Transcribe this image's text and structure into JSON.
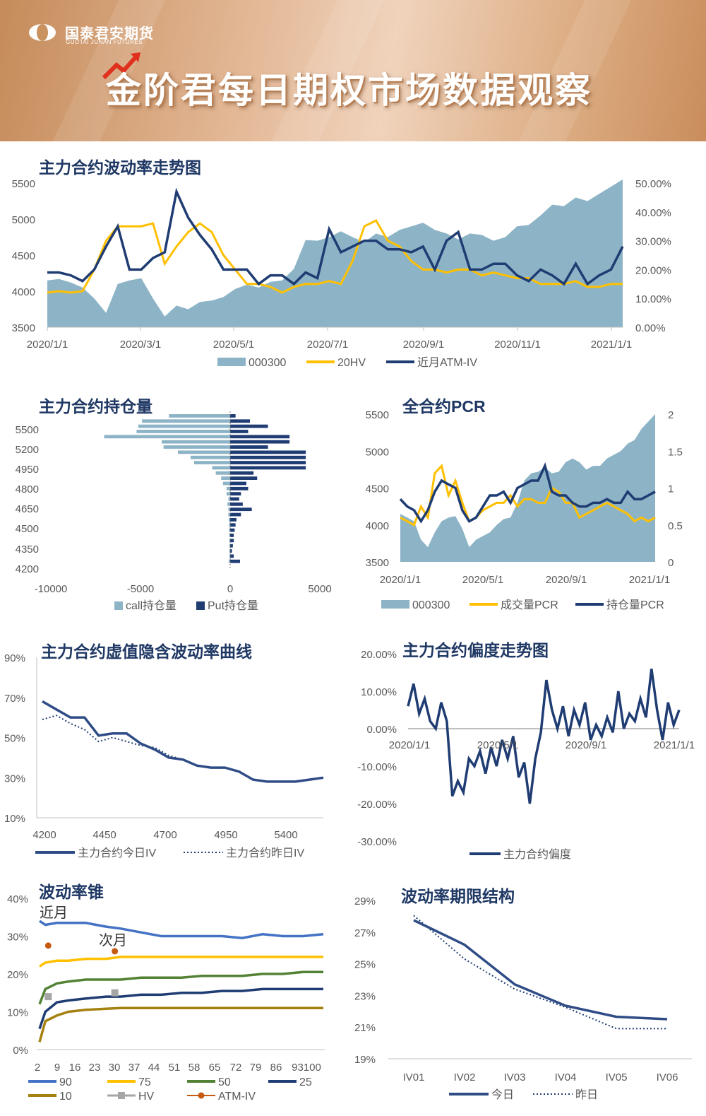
{
  "header": {
    "logo_cn": "国泰君安期货",
    "logo_en": "GUOTAI JUNAN FUTURES",
    "title": "金阶君每日期权市场数据观察"
  },
  "colors": {
    "title": "#1f3864",
    "navy": "#1f3c73",
    "gold": "#ffc000",
    "area": "#8db4c6",
    "blue": "#4472c4",
    "green": "#548235",
    "olive": "#a5810f",
    "gray": "#a6a6a6",
    "orange": "#c55a11",
    "navy2": "#2f4c87"
  },
  "chart_data": [
    {
      "id": "vol_trend",
      "type": "line",
      "title": "主力合约波动率走势图",
      "x_ticks": [
        "2020/1/1",
        "2020/3/1",
        "2020/5/1",
        "2020/7/1",
        "2020/9/1",
        "2020/11/1",
        "2021/1/1"
      ],
      "ylim": [
        3500,
        5500
      ],
      "y_ticks": [
        "5500",
        "5000",
        "4500",
        "4000",
        "3500"
      ],
      "y2lim": [
        0,
        0.5
      ],
      "y2_ticks": [
        "50.00%",
        "40.00%",
        "30.00%",
        "20.00%",
        "10.00%",
        "0.00%"
      ],
      "legend": [
        "000300",
        "20HV",
        "近月ATM-IV"
      ],
      "series": [
        {
          "name": "000300",
          "axis": "left",
          "values": [
            4150,
            4170,
            4120,
            4050,
            3900,
            3700,
            4100,
            4150,
            4180,
            3900,
            3650,
            3800,
            3750,
            3850,
            3870,
            3920,
            4030,
            4090,
            4050,
            4130,
            4150,
            4310,
            4710,
            4700,
            4750,
            4830,
            4750,
            4680,
            4800,
            4750,
            4850,
            4900,
            4950,
            4850,
            4800,
            4720,
            4800,
            4780,
            4700,
            4750,
            4900,
            4920,
            5050,
            5200,
            5180,
            5300,
            5250,
            5350,
            5450,
            5550
          ]
        },
        {
          "name": "20HV",
          "axis": "right",
          "values": [
            0.12,
            0.125,
            0.12,
            0.125,
            0.2,
            0.3,
            0.35,
            0.35,
            0.35,
            0.36,
            0.22,
            0.28,
            0.33,
            0.36,
            0.33,
            0.25,
            0.2,
            0.15,
            0.15,
            0.14,
            0.12,
            0.14,
            0.15,
            0.15,
            0.16,
            0.15,
            0.23,
            0.35,
            0.37,
            0.3,
            0.28,
            0.23,
            0.2,
            0.2,
            0.19,
            0.2,
            0.2,
            0.18,
            0.19,
            0.18,
            0.17,
            0.17,
            0.15,
            0.15,
            0.15,
            0.16,
            0.14,
            0.14,
            0.15,
            0.15
          ]
        },
        {
          "name": "近月ATM-IV",
          "axis": "right",
          "values": [
            0.19,
            0.19,
            0.18,
            0.16,
            0.2,
            0.28,
            0.35,
            0.2,
            0.2,
            0.24,
            0.26,
            0.47,
            0.38,
            0.32,
            0.27,
            0.2,
            0.2,
            0.2,
            0.15,
            0.18,
            0.18,
            0.15,
            0.19,
            0.17,
            0.34,
            0.26,
            0.28,
            0.3,
            0.3,
            0.27,
            0.27,
            0.26,
            0.28,
            0.2,
            0.3,
            0.33,
            0.2,
            0.2,
            0.22,
            0.22,
            0.18,
            0.16,
            0.2,
            0.18,
            0.15,
            0.22,
            0.15,
            0.18,
            0.2,
            0.28
          ]
        }
      ]
    },
    {
      "id": "oi",
      "type": "bar",
      "title": "主力合约持仓量",
      "orientation": "horizontal",
      "categories": [
        "5600",
        "5550",
        "5500",
        "5450",
        "5400",
        "5350",
        "5300",
        "5250",
        "5200",
        "5150",
        "5100",
        "5050",
        "5000",
        "4950",
        "4900",
        "4850",
        "4800",
        "4750",
        "4700",
        "4650",
        "4600",
        "4550",
        "4500",
        "4450",
        "4400",
        "4350",
        "4300",
        "4250",
        "4200"
      ],
      "y_tick_labels": [
        "5500",
        "5200",
        "4950",
        "4800",
        "4650",
        "4500",
        "4350",
        "4200"
      ],
      "x_ticks": [
        "-10000",
        "-5000",
        "0",
        "5000"
      ],
      "xlim": [
        -10000,
        5000
      ],
      "legend": [
        "call持仓量",
        "Put持仓量"
      ],
      "series": [
        {
          "name": "call持仓量",
          "values": [
            -3400,
            -4900,
            -5100,
            -5200,
            -7000,
            -3800,
            -3700,
            -2900,
            -2200,
            -2000,
            -1000,
            -800,
            -500,
            -400,
            -200,
            -200,
            -100,
            -150,
            -100,
            -100,
            -80,
            -60,
            -60,
            -50,
            -40,
            -40,
            -40,
            -40,
            -80
          ]
        },
        {
          "name": "Put持仓量",
          "values": [
            300,
            1100,
            2100,
            1000,
            3300,
            3300,
            2100,
            4200,
            4200,
            4200,
            4200,
            1300,
            1500,
            900,
            1000,
            600,
            500,
            700,
            1200,
            600,
            350,
            300,
            250,
            200,
            200,
            150,
            100,
            200,
            550
          ]
        }
      ]
    },
    {
      "id": "pcr",
      "type": "line",
      "title": "全合约PCR",
      "x_ticks": [
        "2020/1/1",
        "2020/5/1",
        "2020/9/1",
        "2021/1/1"
      ],
      "ylim": [
        3500,
        5500
      ],
      "y_ticks": [
        "5500",
        "5000",
        "4500",
        "4000",
        "3500"
      ],
      "y2lim": [
        0,
        2
      ],
      "y2_ticks": [
        "2",
        "1.5",
        "1",
        "0.5",
        "0"
      ],
      "legend": [
        "000300",
        "成交量PCR",
        "持仓量PCR"
      ],
      "series": [
        {
          "name": "000300",
          "axis": "left",
          "values": [
            4150,
            4100,
            4050,
            3800,
            3700,
            3900,
            4050,
            4100,
            4120,
            3950,
            3700,
            3800,
            3850,
            3900,
            4000,
            4080,
            4100,
            4300,
            4600,
            4700,
            4720,
            4780,
            4700,
            4720,
            4850,
            4900,
            4850,
            4750,
            4800,
            4800,
            4900,
            4950,
            5000,
            5100,
            5150,
            5300,
            5400,
            5500
          ]
        },
        {
          "name": "成交量PCR",
          "axis": "right",
          "values": [
            0.6,
            0.55,
            0.5,
            0.75,
            0.6,
            1.2,
            1.3,
            0.9,
            1.1,
            0.8,
            0.55,
            0.6,
            0.7,
            0.75,
            0.8,
            0.8,
            0.9,
            0.75,
            0.85,
            0.85,
            0.8,
            0.8,
            1.0,
            0.95,
            0.8,
            0.8,
            0.6,
            0.65,
            0.7,
            0.75,
            0.8,
            0.75,
            0.7,
            0.65,
            0.55,
            0.6,
            0.55,
            0.6
          ]
        },
        {
          "name": "持仓量PCR",
          "axis": "right",
          "values": [
            0.85,
            0.75,
            0.7,
            0.55,
            0.7,
            0.95,
            1.1,
            1.05,
            1.0,
            0.7,
            0.55,
            0.6,
            0.75,
            0.9,
            0.9,
            0.95,
            0.8,
            1.0,
            1.05,
            1.1,
            1.1,
            1.3,
            0.95,
            0.9,
            0.9,
            0.8,
            0.75,
            0.75,
            0.8,
            0.8,
            0.85,
            0.8,
            0.8,
            0.95,
            0.85,
            0.85,
            0.9,
            0.95
          ]
        }
      ]
    },
    {
      "id": "smile",
      "type": "line",
      "title": "主力合约虚值隐含波动率曲线",
      "x_ticks": [
        "4200",
        "4450",
        "4700",
        "4950",
        "5400"
      ],
      "ylim": [
        0.1,
        0.9
      ],
      "y_ticks": [
        "90%",
        "70%",
        "50%",
        "30%",
        "10%"
      ],
      "legend": [
        "主力合约今日IV",
        "主力合约昨日IV"
      ],
      "series": [
        {
          "name": "主力合约今日IV",
          "values": [
            0.68,
            0.64,
            0.6,
            0.6,
            0.51,
            0.52,
            0.52,
            0.47,
            0.44,
            0.4,
            0.39,
            0.36,
            0.35,
            0.35,
            0.33,
            0.29,
            0.28,
            0.28,
            0.28,
            0.29,
            0.3
          ]
        },
        {
          "name": "主力合约昨日IV",
          "values": [
            0.59,
            0.61,
            0.57,
            0.54,
            0.48,
            0.5,
            0.48,
            0.46,
            0.45,
            0.41,
            0.39,
            0.36,
            0.35,
            0.35,
            0.33,
            0.29,
            0.28,
            0.28,
            0.28,
            0.29,
            0.3
          ]
        }
      ]
    },
    {
      "id": "skew",
      "type": "line",
      "title": "主力合约偏度走势图",
      "x_ticks": [
        "2020/1/1",
        "2020/5/1",
        "2020/9/1",
        "2021/1/1"
      ],
      "ylim": [
        -0.3,
        0.2
      ],
      "y_ticks": [
        "20.00%",
        "10.00%",
        "0.00%",
        "-10.00%",
        "-20.00%",
        "-30.00%"
      ],
      "legend": [
        "主力合约偏度"
      ],
      "series": [
        {
          "name": "主力合约偏度",
          "values": [
            0.06,
            0.12,
            0.04,
            0.08,
            0.02,
            0.0,
            0.07,
            0.02,
            -0.18,
            -0.14,
            -0.17,
            -0.08,
            -0.1,
            -0.06,
            -0.12,
            -0.05,
            -0.1,
            -0.03,
            -0.08,
            -0.02,
            -0.13,
            -0.09,
            -0.2,
            -0.08,
            -0.01,
            0.13,
            0.05,
            0.0,
            0.06,
            -0.02,
            0.05,
            0.01,
            0.07,
            -0.03,
            0.01,
            -0.02,
            0.03,
            -0.01,
            0.1,
            0.0,
            0.04,
            0.02,
            0.08,
            0.03,
            0.16,
            0.05,
            -0.03,
            0.07,
            0.01,
            0.05
          ]
        }
      ]
    },
    {
      "id": "cone",
      "type": "line",
      "title": "波动率锥",
      "x_ticks": [
        "2",
        "9",
        "16",
        "23",
        "30",
        "37",
        "44",
        "51",
        "58",
        "65",
        "72",
        "79",
        "86",
        "93100"
      ],
      "ylim": [
        0,
        0.4
      ],
      "y_ticks": [
        "40%",
        "30%",
        "20%",
        "10%",
        "0%"
      ],
      "annotations": [
        "近月",
        "次月"
      ],
      "legend": [
        "90",
        "75",
        "50",
        "25",
        "10",
        "HV",
        "ATM-IV"
      ],
      "x": [
        2,
        4,
        8,
        12,
        18,
        25,
        30,
        37,
        44,
        51,
        58,
        65,
        72,
        79,
        86,
        93,
        100
      ],
      "series": [
        {
          "name": "90",
          "values": [
            0.34,
            0.33,
            0.335,
            0.335,
            0.335,
            0.325,
            0.32,
            0.31,
            0.3,
            0.3,
            0.3,
            0.3,
            0.295,
            0.305,
            0.3,
            0.3,
            0.305
          ]
        },
        {
          "name": "75",
          "values": [
            0.22,
            0.23,
            0.235,
            0.235,
            0.24,
            0.24,
            0.245,
            0.245,
            0.245,
            0.245,
            0.245,
            0.245,
            0.245,
            0.245,
            0.245,
            0.245,
            0.245
          ]
        },
        {
          "name": "50",
          "values": [
            0.12,
            0.16,
            0.175,
            0.18,
            0.185,
            0.185,
            0.185,
            0.19,
            0.19,
            0.19,
            0.195,
            0.195,
            0.195,
            0.2,
            0.2,
            0.205,
            0.205
          ]
        },
        {
          "name": "25",
          "values": [
            0.055,
            0.1,
            0.125,
            0.13,
            0.135,
            0.14,
            0.14,
            0.145,
            0.145,
            0.15,
            0.15,
            0.155,
            0.155,
            0.16,
            0.16,
            0.16,
            0.16
          ]
        },
        {
          "name": "10",
          "values": [
            0.02,
            0.075,
            0.09,
            0.1,
            0.105,
            0.108,
            0.11,
            0.11,
            0.11,
            0.11,
            0.11,
            0.11,
            0.11,
            0.11,
            0.11,
            0.11,
            0.11
          ]
        },
        {
          "name": "HV",
          "points": [
            [
              5,
              0.14
            ],
            [
              28,
              0.15
            ]
          ]
        },
        {
          "name": "ATM-IV",
          "points": [
            [
              5,
              0.275
            ],
            [
              28,
              0.26
            ]
          ]
        }
      ]
    },
    {
      "id": "term",
      "type": "line",
      "title": "波动率期限结构",
      "categories": [
        "IV01",
        "IV02",
        "IV03",
        "IV04",
        "IV05",
        "IV06"
      ],
      "ylim": [
        0.19,
        0.29
      ],
      "y_ticks": [
        "29%",
        "27%",
        "25%",
        "23%",
        "21%",
        "19%"
      ],
      "legend": [
        "今日",
        "昨日"
      ],
      "series": [
        {
          "name": "今日",
          "values": [
            0.2775,
            0.262,
            0.237,
            0.2235,
            0.2165,
            0.215
          ]
        },
        {
          "name": "昨日",
          "values": [
            0.2805,
            0.253,
            0.234,
            0.2225,
            0.209,
            0.209
          ]
        }
      ]
    }
  ]
}
